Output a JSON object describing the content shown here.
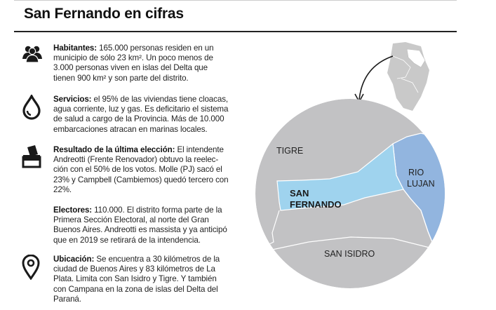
{
  "header": {
    "title": "San Fernando en cifras"
  },
  "items": [
    {
      "icon": "people-icon",
      "label": "Habitantes:",
      "lines": [
        " 165.000 personas residen en un",
        "municipio de sólo 23 km². Un poco menos de",
        "3.000 personas viven en islas del Delta que",
        "tienen 900 km² y son parte del distrito."
      ]
    },
    {
      "icon": "water-drop-icon",
      "label": "Servicios:",
      "lines": [
        " el 95% de las viviendas tiene cloacas,",
        "agua corriente, luz y gas. Es deficitario el sistema",
        "de salud a cargo de la Provincia. Más de 10.000",
        "embarcaciones atracan en marinas locales."
      ]
    },
    {
      "icon": "ballot-box-icon",
      "label": "Resultado de la última elección:",
      "lines": [
        " El intendente",
        "Andreotti (Frente Renovador) obtuvo la reelec-",
        "ción con el 50% de los votos. Molle (PJ) sacó el",
        "23% y Campbell (Cambiemos) quedó tercero con",
        "22%."
      ]
    },
    {
      "icon": "",
      "label": "Electores:",
      "lines": [
        " 110.000. El distrito forma parte de la",
        "Primera Sección Electoral, al norte del Gran",
        "Buenos Aires. Andreotti es massista y ya anticipó",
        "que en 2019 se retirará de la intendencia."
      ]
    },
    {
      "icon": "location-pin-icon",
      "label": "Ubicación:",
      "lines": [
        " Se encuentra a 30 kilómetros de la",
        "ciudad de Buenos Aires y 83 kilómetros de La",
        "Plata. Limita con San Isidro y Tigre. Y también",
        "con Campana en la zona de islas del Delta del",
        "Paraná."
      ]
    }
  ],
  "map": {
    "labels": {
      "tigre": "TIGRE",
      "san_fernando_1": "SAN",
      "san_fernando_2": "FERNANDO",
      "rio_lujan_1": "RIO",
      "rio_lujan_2": "LUJAN",
      "san_isidro": "SAN ISIDRO"
    },
    "colors": {
      "circle": "#c2c2c4",
      "san_fernando": "#9fd3ee",
      "rio_lujan": "#92b5df",
      "borders": "#ffffff",
      "inset": "#c9c9c9",
      "inset_highlight": "#ffffff"
    }
  }
}
